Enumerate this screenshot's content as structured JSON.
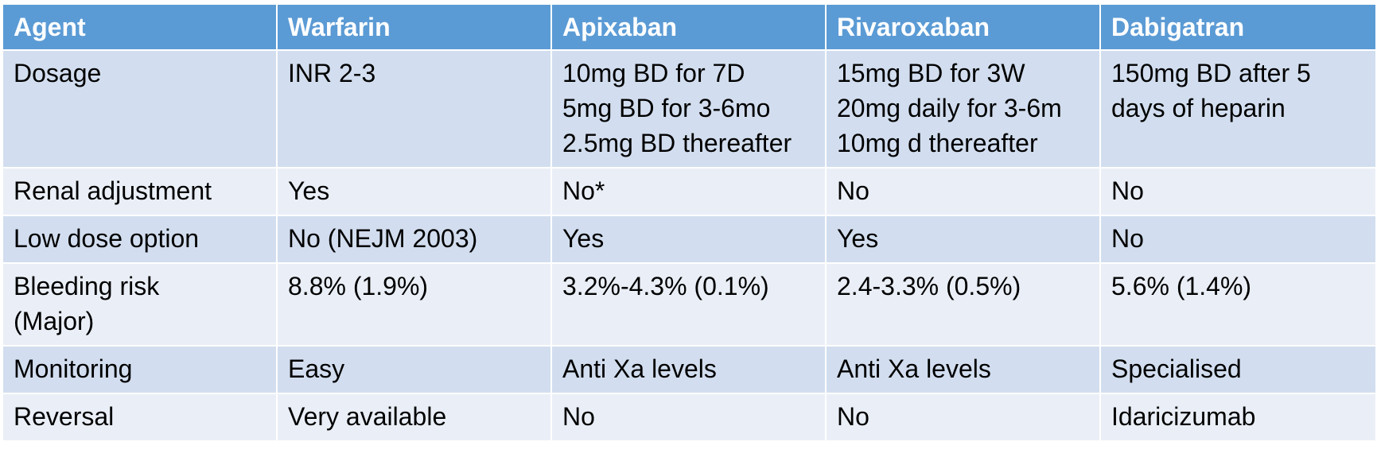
{
  "header": [
    "Agent",
    "Warfarin",
    "Apixaban",
    "Rivaroxaban",
    "Dabigatran"
  ],
  "rows": [
    {
      "label": [
        "Dosage"
      ],
      "cells": [
        [
          "INR 2-3"
        ],
        [
          "10mg BD for 7D",
          "5mg BD for 3-6mo",
          "2.5mg BD thereafter"
        ],
        [
          "15mg BD for 3W",
          "20mg daily for 3-6m",
          "10mg d thereafter"
        ],
        [
          "150mg BD after 5",
          "days of heparin"
        ]
      ]
    },
    {
      "label": [
        "Renal adjustment"
      ],
      "cells": [
        [
          "Yes"
        ],
        [
          "No*"
        ],
        [
          "No"
        ],
        [
          "No"
        ]
      ]
    },
    {
      "label": [
        "Low dose option"
      ],
      "cells": [
        [
          "No (NEJM 2003)"
        ],
        [
          "Yes"
        ],
        [
          "Yes"
        ],
        [
          "No"
        ]
      ]
    },
    {
      "label": [
        "Bleeding risk",
        "(Major)"
      ],
      "cells": [
        [
          "8.8% (1.9%)"
        ],
        [
          "3.2%-4.3% (0.1%)"
        ],
        [
          "2.4-3.3% (0.5%)"
        ],
        [
          "5.6% (1.4%)"
        ]
      ]
    },
    {
      "label": [
        "Monitoring"
      ],
      "cells": [
        [
          "Easy"
        ],
        [
          "Anti Xa levels"
        ],
        [
          "Anti Xa levels"
        ],
        [
          "Specialised"
        ]
      ]
    },
    {
      "label": [
        "Reversal"
      ],
      "cells": [
        [
          "Very available"
        ],
        [
          "No"
        ],
        [
          "No"
        ],
        [
          "Idaricizumab"
        ]
      ]
    }
  ]
}
